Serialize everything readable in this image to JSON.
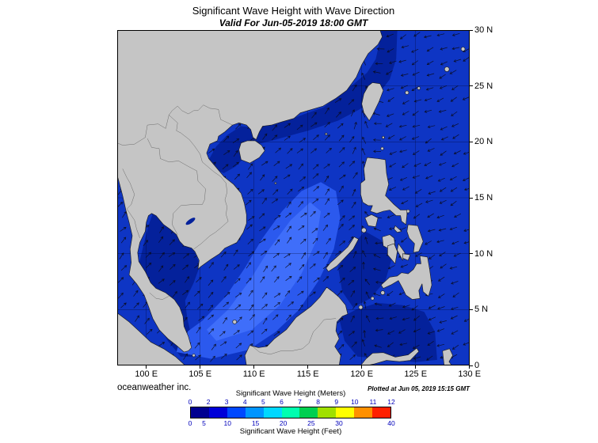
{
  "header": {
    "title": "Significant Wave Height with Wave Direction",
    "subtitle": "Valid For Jun-05-2019 18:00 GMT"
  },
  "axes": {
    "lat_labels": [
      "30 N",
      "25 N",
      "20 N",
      "15 N",
      "10 N",
      "5 N",
      "0"
    ],
    "lon_labels": [
      "100 E",
      "105 E",
      "110 E",
      "115 E",
      "120 E",
      "125 E",
      "130 E"
    ]
  },
  "footer": {
    "credit": "oceanweather inc.",
    "plotted": "Plotted at Jun 05, 2019 15:15 GMT"
  },
  "legend": {
    "meters_label": "Significant Wave Height (Meters)",
    "feet_label": "Significant Wave Height (Feet)",
    "meters_ticks": [
      "0",
      "2",
      "3",
      "4",
      "5",
      "6",
      "7",
      "8",
      "9",
      "10",
      "11",
      "12"
    ],
    "feet_ticks": [
      "0",
      "5",
      "10",
      "15",
      "20",
      "25",
      "30",
      "40"
    ],
    "segment_colors": [
      "#000090",
      "#0000d8",
      "#0048ff",
      "#0095ff",
      "#00d8ff",
      "#00ffb0",
      "#00d050",
      "#a0e000",
      "#ffff00",
      "#ff9000",
      "#ff2000"
    ],
    "tick_color": "#0000bb"
  },
  "map_colors": {
    "land": "#c5c5c5",
    "ocean_low": "#04219b",
    "ocean_mid": "#0e35c4",
    "ocean_high": "#2b59ee",
    "ocean_peak": "#3f6efa",
    "coastline": "#1a1a1a"
  },
  "chart_data": {
    "type": "heatmap",
    "title": "Significant Wave Height with Wave Direction",
    "valid_time": "Jun-05-2019 18:00 GMT",
    "plotted_time": "Jun 05, 2019 15:15 GMT",
    "x_ticks": [
      "100 E",
      "105 E",
      "110 E",
      "115 E",
      "120 E",
      "125 E",
      "130 E"
    ],
    "y_ticks": [
      "30 N",
      "25 N",
      "20 N",
      "15 N",
      "10 N",
      "5 N",
      "0"
    ],
    "colorbar_meters": [
      0,
      2,
      3,
      4,
      5,
      6,
      7,
      8,
      9,
      10,
      11,
      12
    ],
    "colorbar_feet": [
      0,
      5,
      10,
      15,
      20,
      25,
      30,
      40
    ],
    "overlay": "wave direction arrows",
    "region": "South China Sea and Western Pacific"
  }
}
